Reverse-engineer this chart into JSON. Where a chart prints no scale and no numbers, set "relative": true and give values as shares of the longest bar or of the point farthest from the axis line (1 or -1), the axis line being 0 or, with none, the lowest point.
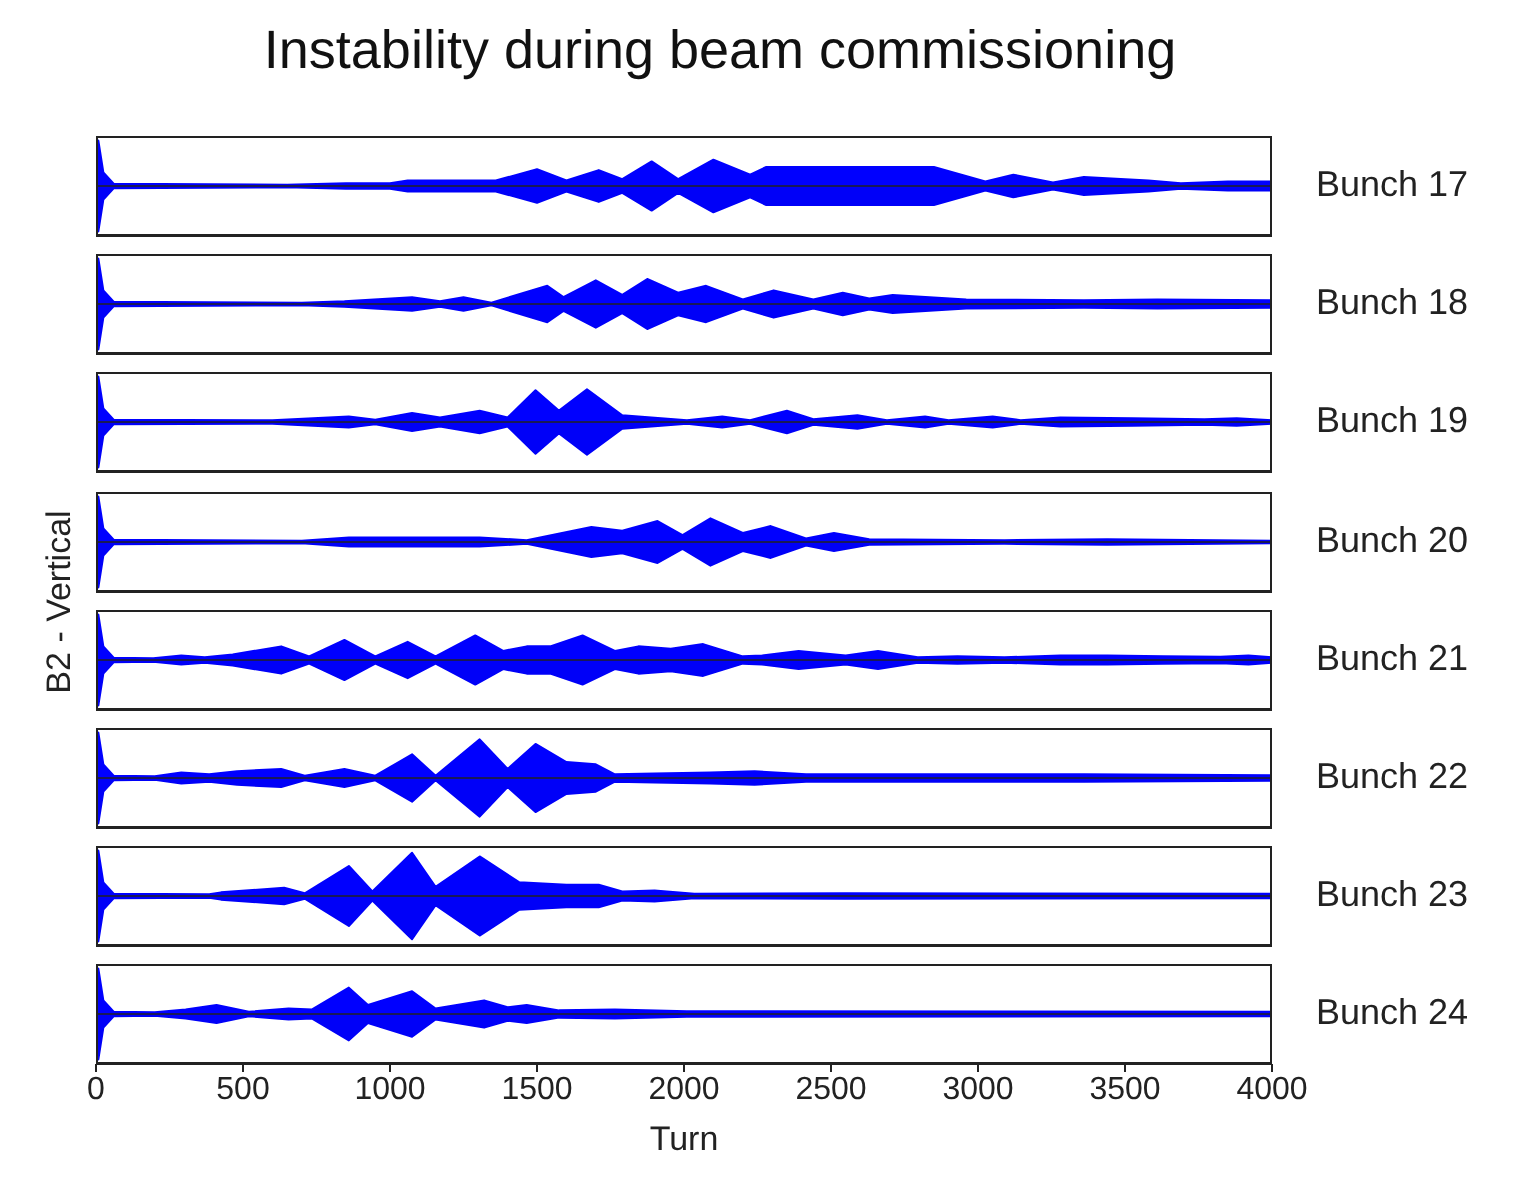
{
  "chart_data": [
    {
      "type": "area",
      "relative": true,
      "title": "Instability during beam commissioning",
      "xlim": [
        0,
        4000
      ],
      "xticks": [
        0,
        500,
        1000,
        1500,
        2000,
        2500,
        3000,
        3500,
        4000
      ],
      "tick_labels": false,
      "series": [
        {
          "name": "Bunch 17",
          "color": "#0000ff",
          "x": [
            0,
            8,
            25,
            60,
            650,
            850,
            1000,
            1060,
            1360,
            1500,
            1600,
            1710,
            1790,
            1890,
            1980,
            2100,
            2225,
            2280,
            2710,
            2850,
            3025,
            3120,
            3255,
            3360,
            3580,
            3690,
            3850,
            4000
          ],
          "values": [
            0.9,
            1,
            0.3,
            0.05,
            0.03,
            0.06,
            0.06,
            0.12,
            0.12,
            0.37,
            0.12,
            0.35,
            0.15,
            0.54,
            0.15,
            0.58,
            0.25,
            0.42,
            0.42,
            0.42,
            0.1,
            0.25,
            0.08,
            0.2,
            0.12,
            0.06,
            0.1,
            0.1
          ]
        },
        {
          "color": "#0000f8",
          "x": [
            0,
            8,
            25,
            60,
            650,
            850,
            1000,
            1060,
            1360,
            1500,
            1600,
            1710,
            1790,
            1890,
            1980,
            2100,
            2225,
            2280,
            2710,
            2850,
            3025,
            3120,
            3255,
            3360,
            3580,
            3690,
            3850,
            4000
          ],
          "values": [
            -0.9,
            -1,
            -0.3,
            -0.05,
            -0.03,
            -0.06,
            -0.06,
            -0.12,
            -0.12,
            -0.37,
            -0.12,
            -0.35,
            -0.15,
            -0.54,
            -0.15,
            -0.58,
            -0.25,
            -0.42,
            -0.42,
            -0.42,
            -0.1,
            -0.25,
            -0.08,
            -0.2,
            -0.12,
            -0.06,
            -0.1,
            -0.1
          ]
        }
      ]
    },
    {
      "type": "area",
      "relative": true,
      "xlim": [
        0,
        4000
      ],
      "xticks": [
        0,
        500,
        1000,
        1500,
        2000,
        2500,
        3000,
        3500,
        4000
      ],
      "tick_labels": false,
      "series": [
        {
          "name": "Bunch 18",
          "color": "#0000ff",
          "x": [
            0,
            8,
            25,
            60,
            700,
            845,
            1075,
            1170,
            1250,
            1345,
            1535,
            1590,
            1700,
            1790,
            1875,
            1980,
            2075,
            2200,
            2305,
            2440,
            2540,
            2630,
            2710,
            2960,
            3360,
            3610,
            4000
          ],
          "values": [
            0.9,
            1,
            0.3,
            0.05,
            0.03,
            0.06,
            0.15,
            0.06,
            0.15,
            0.03,
            0.4,
            0.15,
            0.52,
            0.2,
            0.55,
            0.25,
            0.4,
            0.1,
            0.3,
            0.1,
            0.25,
            0.12,
            0.2,
            0.1,
            0.08,
            0.1,
            0.08
          ]
        },
        {
          "color": "#0000f8",
          "x": [
            0,
            8,
            25,
            60,
            700,
            845,
            1075,
            1170,
            1250,
            1345,
            1535,
            1590,
            1700,
            1790,
            1875,
            1980,
            2075,
            2200,
            2305,
            2440,
            2540,
            2630,
            2710,
            2960,
            3360,
            3610,
            4000
          ],
          "values": [
            -0.9,
            -1,
            -0.3,
            -0.05,
            -0.03,
            -0.06,
            -0.15,
            -0.06,
            -0.15,
            -0.03,
            -0.4,
            -0.15,
            -0.52,
            -0.2,
            -0.55,
            -0.25,
            -0.4,
            -0.1,
            -0.3,
            -0.1,
            -0.25,
            -0.12,
            -0.2,
            -0.1,
            -0.08,
            -0.1,
            -0.08
          ]
        }
      ]
    },
    {
      "type": "area",
      "relative": true,
      "xlim": [
        0,
        4000
      ],
      "xticks": [
        0,
        500,
        1000,
        1500,
        2000,
        2500,
        3000,
        3500,
        4000
      ],
      "tick_labels": false,
      "series": [
        {
          "name": "Bunch 19",
          "color": "#0000ff",
          "x": [
            0,
            8,
            25,
            60,
            600,
            860,
            950,
            1075,
            1170,
            1305,
            1400,
            1495,
            1575,
            1670,
            1790,
            1845,
            2010,
            2130,
            2225,
            2350,
            2440,
            2590,
            2690,
            2820,
            2900,
            3050,
            3145,
            3280,
            3525,
            3770,
            3880,
            4000
          ],
          "values": [
            0.9,
            1,
            0.3,
            0.05,
            0.04,
            0.12,
            0.05,
            0.2,
            0.1,
            0.25,
            0.1,
            0.7,
            0.25,
            0.72,
            0.15,
            0.12,
            0.04,
            0.12,
            0.04,
            0.25,
            0.06,
            0.15,
            0.04,
            0.12,
            0.04,
            0.12,
            0.04,
            0.1,
            0.08,
            0.06,
            0.08,
            0.04
          ]
        },
        {
          "color": "#0000f8",
          "x": [
            0,
            8,
            25,
            60,
            600,
            860,
            950,
            1075,
            1170,
            1305,
            1400,
            1495,
            1575,
            1670,
            1790,
            1845,
            2010,
            2130,
            2225,
            2350,
            2440,
            2590,
            2690,
            2820,
            2900,
            3050,
            3145,
            3280,
            3525,
            3770,
            3880,
            4000
          ],
          "values": [
            -0.9,
            -1,
            -0.3,
            -0.05,
            -0.04,
            -0.12,
            -0.05,
            -0.2,
            -0.1,
            -0.25,
            -0.1,
            -0.7,
            -0.25,
            -0.72,
            -0.15,
            -0.12,
            -0.04,
            -0.12,
            -0.04,
            -0.25,
            -0.06,
            -0.15,
            -0.04,
            -0.12,
            -0.04,
            -0.12,
            -0.04,
            -0.1,
            -0.08,
            -0.06,
            -0.08,
            -0.04
          ]
        }
      ]
    },
    {
      "type": "area",
      "relative": true,
      "ylabel": "B2 - Vertical",
      "xlim": [
        0,
        4000
      ],
      "xticks": [
        0,
        500,
        1000,
        1500,
        2000,
        2500,
        3000,
        3500,
        4000
      ],
      "tick_labels": false,
      "series": [
        {
          "name": "Bunch 20",
          "color": "#0000ff",
          "x": [
            0,
            8,
            25,
            60,
            700,
            860,
            1090,
            1305,
            1465,
            1685,
            1790,
            1910,
            1995,
            2090,
            2200,
            2295,
            2415,
            2510,
            2630,
            3090,
            3440,
            4000
          ],
          "values": [
            0.9,
            1,
            0.3,
            0.05,
            0.03,
            0.1,
            0.1,
            0.1,
            0.04,
            0.33,
            0.25,
            0.46,
            0.15,
            0.52,
            0.2,
            0.35,
            0.08,
            0.2,
            0.06,
            0.04,
            0.06,
            0.03
          ]
        },
        {
          "color": "#0000f8",
          "x": [
            0,
            8,
            25,
            60,
            700,
            860,
            1090,
            1305,
            1465,
            1685,
            1790,
            1910,
            1995,
            2090,
            2200,
            2295,
            2415,
            2510,
            2630,
            3090,
            3440,
            4000
          ],
          "values": [
            -0.9,
            -1,
            -0.3,
            -0.05,
            -0.03,
            -0.1,
            -0.1,
            -0.1,
            -0.04,
            -0.33,
            -0.25,
            -0.46,
            -0.15,
            -0.52,
            -0.2,
            -0.35,
            -0.08,
            -0.2,
            -0.06,
            -0.04,
            -0.06,
            -0.03
          ]
        }
      ]
    },
    {
      "type": "area",
      "relative": true,
      "xlim": [
        0,
        4000
      ],
      "xticks": [
        0,
        500,
        1000,
        1500,
        2000,
        2500,
        3000,
        3500,
        4000
      ],
      "tick_labels": false,
      "series": [
        {
          "name": "Bunch 21",
          "color": "#0000ff",
          "x": [
            0,
            8,
            25,
            60,
            195,
            290,
            370,
            465,
            630,
            725,
            845,
            950,
            1060,
            1155,
            1290,
            1385,
            1465,
            1545,
            1655,
            1765,
            1845,
            1955,
            2065,
            2200,
            2265,
            2390,
            2550,
            2660,
            2795,
            2930,
            3090,
            3280,
            3440,
            3630,
            3825,
            3920,
            4000
          ],
          "values": [
            0.9,
            1,
            0.3,
            0.05,
            0.04,
            0.1,
            0.06,
            0.12,
            0.3,
            0.08,
            0.44,
            0.08,
            0.4,
            0.08,
            0.54,
            0.2,
            0.3,
            0.3,
            0.54,
            0.2,
            0.3,
            0.25,
            0.35,
            0.08,
            0.1,
            0.2,
            0.1,
            0.2,
            0.06,
            0.08,
            0.06,
            0.1,
            0.1,
            0.08,
            0.07,
            0.1,
            0.06
          ]
        },
        {
          "color": "#0000f8",
          "x": [
            0,
            8,
            25,
            60,
            195,
            290,
            370,
            465,
            630,
            725,
            845,
            950,
            1060,
            1155,
            1290,
            1385,
            1465,
            1545,
            1655,
            1765,
            1845,
            1955,
            2065,
            2200,
            2265,
            2390,
            2550,
            2660,
            2795,
            2930,
            3090,
            3280,
            3440,
            3630,
            3825,
            3920,
            4000
          ],
          "values": [
            -0.9,
            -1,
            -0.3,
            -0.05,
            -0.04,
            -0.1,
            -0.06,
            -0.12,
            -0.3,
            -0.08,
            -0.44,
            -0.08,
            -0.4,
            -0.08,
            -0.54,
            -0.2,
            -0.3,
            -0.3,
            -0.54,
            -0.2,
            -0.3,
            -0.25,
            -0.35,
            -0.08,
            -0.1,
            -0.2,
            -0.1,
            -0.2,
            -0.06,
            -0.08,
            -0.06,
            -0.1,
            -0.1,
            -0.08,
            -0.07,
            -0.1,
            -0.06
          ]
        }
      ]
    },
    {
      "type": "area",
      "relative": true,
      "xlim": [
        0,
        4000
      ],
      "xticks": [
        0,
        500,
        1000,
        1500,
        2000,
        2500,
        3000,
        3500,
        4000
      ],
      "tick_labels": false,
      "series": [
        {
          "name": "Bunch 22",
          "color": "#0000ff",
          "x": [
            0,
            8,
            25,
            60,
            200,
            290,
            385,
            480,
            630,
            710,
            845,
            950,
            1075,
            1155,
            1305,
            1400,
            1495,
            1600,
            1700,
            1765,
            1900,
            2090,
            2240,
            2415,
            2900,
            3360,
            4000
          ],
          "values": [
            0.9,
            1,
            0.3,
            0.05,
            0.04,
            0.12,
            0.08,
            0.15,
            0.2,
            0.05,
            0.2,
            0.05,
            0.52,
            0.05,
            0.85,
            0.2,
            0.75,
            0.35,
            0.3,
            0.08,
            0.1,
            0.12,
            0.15,
            0.08,
            0.08,
            0.08,
            0.06
          ]
        },
        {
          "color": "#0000f8",
          "x": [
            0,
            8,
            25,
            60,
            200,
            290,
            385,
            480,
            630,
            710,
            845,
            950,
            1075,
            1155,
            1305,
            1400,
            1495,
            1600,
            1700,
            1765,
            1900,
            2090,
            2240,
            2415,
            2900,
            3360,
            4000
          ],
          "values": [
            -0.9,
            -1,
            -0.3,
            -0.05,
            -0.04,
            -0.12,
            -0.08,
            -0.15,
            -0.2,
            -0.05,
            -0.2,
            -0.05,
            -0.52,
            -0.05,
            -0.85,
            -0.2,
            -0.75,
            -0.35,
            -0.3,
            -0.08,
            -0.1,
            -0.12,
            -0.15,
            -0.08,
            -0.08,
            -0.08,
            -0.06
          ]
        }
      ]
    },
    {
      "type": "area",
      "relative": true,
      "xlim": [
        0,
        4000
      ],
      "xticks": [
        0,
        500,
        1000,
        1500,
        2000,
        2500,
        3000,
        3500,
        4000
      ],
      "tick_labels": false,
      "series": [
        {
          "name": "Bunch 23",
          "color": "#0000ff",
          "x": [
            0,
            8,
            25,
            60,
            385,
            425,
            640,
            710,
            860,
            940,
            1075,
            1155,
            1305,
            1440,
            1600,
            1710,
            1790,
            1900,
            2035,
            2550,
            4000
          ],
          "values": [
            0.9,
            1,
            0.3,
            0.05,
            0.04,
            0.08,
            0.18,
            0.06,
            0.66,
            0.1,
            0.95,
            0.2,
            0.87,
            0.3,
            0.25,
            0.25,
            0.1,
            0.12,
            0.05,
            0.06,
            0.05
          ]
        },
        {
          "color": "#0000f8",
          "x": [
            0,
            8,
            25,
            60,
            385,
            425,
            640,
            710,
            860,
            940,
            1075,
            1155,
            1305,
            1440,
            1600,
            1710,
            1790,
            1900,
            2035,
            2550,
            4000
          ],
          "values": [
            -0.9,
            -1,
            -0.3,
            -0.05,
            -0.04,
            -0.08,
            -0.18,
            -0.06,
            -0.66,
            -0.1,
            -0.95,
            -0.2,
            -0.87,
            -0.3,
            -0.25,
            -0.25,
            -0.1,
            -0.12,
            -0.05,
            -0.06,
            -0.05
          ]
        }
      ]
    },
    {
      "type": "area",
      "relative": true,
      "xlabel": "Turn",
      "xlim": [
        0,
        4000
      ],
      "xticks": [
        0,
        500,
        1000,
        1500,
        2000,
        2500,
        3000,
        3500,
        4000
      ],
      "tick_labels": "x",
      "series": [
        {
          "name": "Bunch 24",
          "color": "#0000ff",
          "x": [
            0,
            8,
            25,
            60,
            200,
            305,
            410,
            520,
            655,
            735,
            860,
            925,
            1075,
            1155,
            1320,
            1400,
            1465,
            1575,
            1765,
            2010,
            4000
          ],
          "values": [
            0.9,
            1,
            0.3,
            0.05,
            0.04,
            0.1,
            0.2,
            0.05,
            0.12,
            0.1,
            0.58,
            0.2,
            0.5,
            0.12,
            0.3,
            0.15,
            0.2,
            0.08,
            0.1,
            0.06,
            0.05
          ]
        },
        {
          "color": "#0000f8",
          "x": [
            0,
            8,
            25,
            60,
            200,
            305,
            410,
            520,
            655,
            735,
            860,
            925,
            1075,
            1155,
            1320,
            1400,
            1465,
            1575,
            1765,
            2010,
            4000
          ],
          "values": [
            -0.9,
            -1,
            -0.3,
            -0.05,
            -0.04,
            -0.1,
            -0.2,
            -0.05,
            -0.12,
            -0.1,
            -0.58,
            -0.2,
            -0.5,
            -0.12,
            -0.3,
            -0.15,
            -0.2,
            -0.08,
            -0.1,
            -0.06,
            -0.05
          ]
        }
      ]
    }
  ]
}
